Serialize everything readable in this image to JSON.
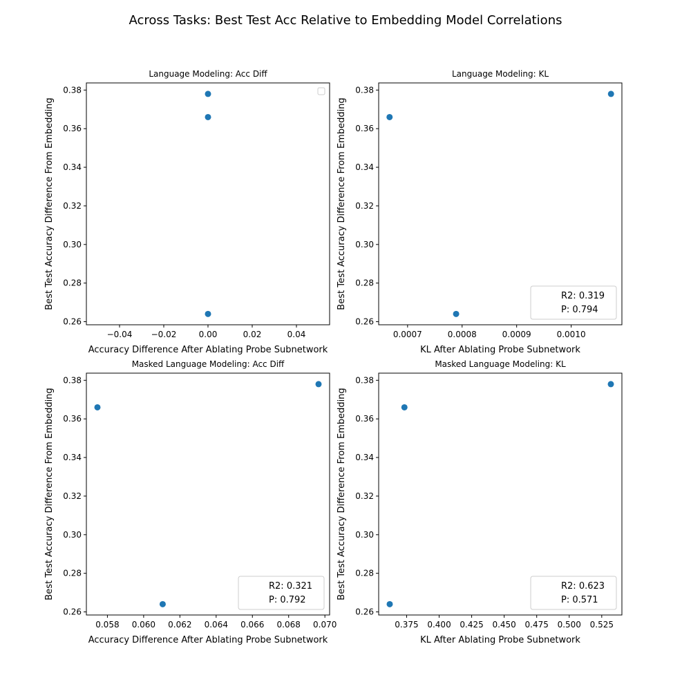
{
  "figure": {
    "suptitle": "Across Tasks: Best Test Acc Relative to Embedding Model Correlations"
  },
  "colors": {
    "marker": "#1f77b4",
    "axis": "#000000",
    "legend_border": "#cccccc"
  },
  "chart_data": [
    {
      "type": "scatter",
      "title": "Language Modeling: Acc Diff",
      "xlabel": "Accuracy Difference After Ablating Probe Subnetwork",
      "ylabel": "Best Test Accuracy Difference From Embedding",
      "x": [
        0.0,
        0.0,
        0.0
      ],
      "y": [
        0.378,
        0.366,
        0.264
      ],
      "xlim": [
        -0.055,
        0.055
      ],
      "ylim": [
        0.2584,
        0.3837
      ],
      "xticks": [
        -0.04,
        -0.02,
        0.0,
        0.02,
        0.04
      ],
      "xtick_labels": [
        "−0.04",
        "−0.02",
        "0.00",
        "0.02",
        "0.04"
      ],
      "yticks": [
        0.26,
        0.28,
        0.3,
        0.32,
        0.34,
        0.36,
        0.38
      ],
      "ytick_labels": [
        "0.26",
        "0.28",
        "0.30",
        "0.32",
        "0.34",
        "0.36",
        "0.38"
      ],
      "legend": {
        "entries": [],
        "placement": "upper right",
        "empty": true
      },
      "grid": false
    },
    {
      "type": "scatter",
      "title": "Language Modeling: KL",
      "xlabel": "KL After Ablating Probe Subnetwork",
      "ylabel": "Best Test Accuracy Difference From Embedding",
      "x": [
        0.000667,
        0.000789,
        0.001073
      ],
      "y": [
        0.366,
        0.264,
        0.378
      ],
      "xlim": [
        0.000647,
        0.001093
      ],
      "ylim": [
        0.2584,
        0.3837
      ],
      "xticks": [
        0.0007,
        0.0008,
        0.0009,
        0.001
      ],
      "xtick_labels": [
        "0.0007",
        "0.0008",
        "0.0009",
        "0.0010"
      ],
      "yticks": [
        0.26,
        0.28,
        0.3,
        0.32,
        0.34,
        0.36,
        0.38
      ],
      "ytick_labels": [
        "0.26",
        "0.28",
        "0.30",
        "0.32",
        "0.34",
        "0.36",
        "0.38"
      ],
      "legend": {
        "entries": [
          "R2: 0.319",
          "P: 0.794"
        ],
        "placement": "lower right",
        "empty": false
      },
      "grid": false
    },
    {
      "type": "scatter",
      "title": "Masked Language Modeling: Acc Diff",
      "xlabel": "Accuracy Difference After Ablating Probe Subnetwork",
      "ylabel": "Best Test Accuracy Difference From Embedding",
      "x": [
        0.05745,
        0.06105,
        0.06965
      ],
      "y": [
        0.366,
        0.264,
        0.378
      ],
      "xlim": [
        0.05684,
        0.07026
      ],
      "ylim": [
        0.2584,
        0.3837
      ],
      "xticks": [
        0.058,
        0.06,
        0.062,
        0.064,
        0.066,
        0.068,
        0.07
      ],
      "xtick_labels": [
        "0.058",
        "0.060",
        "0.062",
        "0.064",
        "0.066",
        "0.068",
        "0.070"
      ],
      "yticks": [
        0.26,
        0.28,
        0.3,
        0.32,
        0.34,
        0.36,
        0.38
      ],
      "ytick_labels": [
        "0.26",
        "0.28",
        "0.30",
        "0.32",
        "0.34",
        "0.36",
        "0.38"
      ],
      "legend": {
        "entries": [
          "R2: 0.321",
          "P: 0.792"
        ],
        "placement": "lower right",
        "empty": false
      },
      "grid": false
    },
    {
      "type": "scatter",
      "title": "Masked Language Modeling: KL",
      "xlabel": "KL After Ablating Probe Subnetwork",
      "ylabel": "Best Test Accuracy Difference From Embedding",
      "x": [
        0.3733,
        0.362,
        0.532
      ],
      "y": [
        0.366,
        0.264,
        0.378
      ],
      "xlim": [
        0.3535,
        0.5405
      ],
      "ylim": [
        0.2584,
        0.3837
      ],
      "xticks": [
        0.375,
        0.4,
        0.425,
        0.45,
        0.475,
        0.5,
        0.525
      ],
      "xtick_labels": [
        "0.375",
        "0.400",
        "0.425",
        "0.450",
        "0.475",
        "0.500",
        "0.525"
      ],
      "yticks": [
        0.26,
        0.28,
        0.3,
        0.32,
        0.34,
        0.36,
        0.38
      ],
      "ytick_labels": [
        "0.26",
        "0.28",
        "0.30",
        "0.32",
        "0.34",
        "0.36",
        "0.38"
      ],
      "legend": {
        "entries": [
          "R2: 0.623",
          "P: 0.571"
        ],
        "placement": "lower right",
        "empty": false
      },
      "grid": false
    }
  ]
}
